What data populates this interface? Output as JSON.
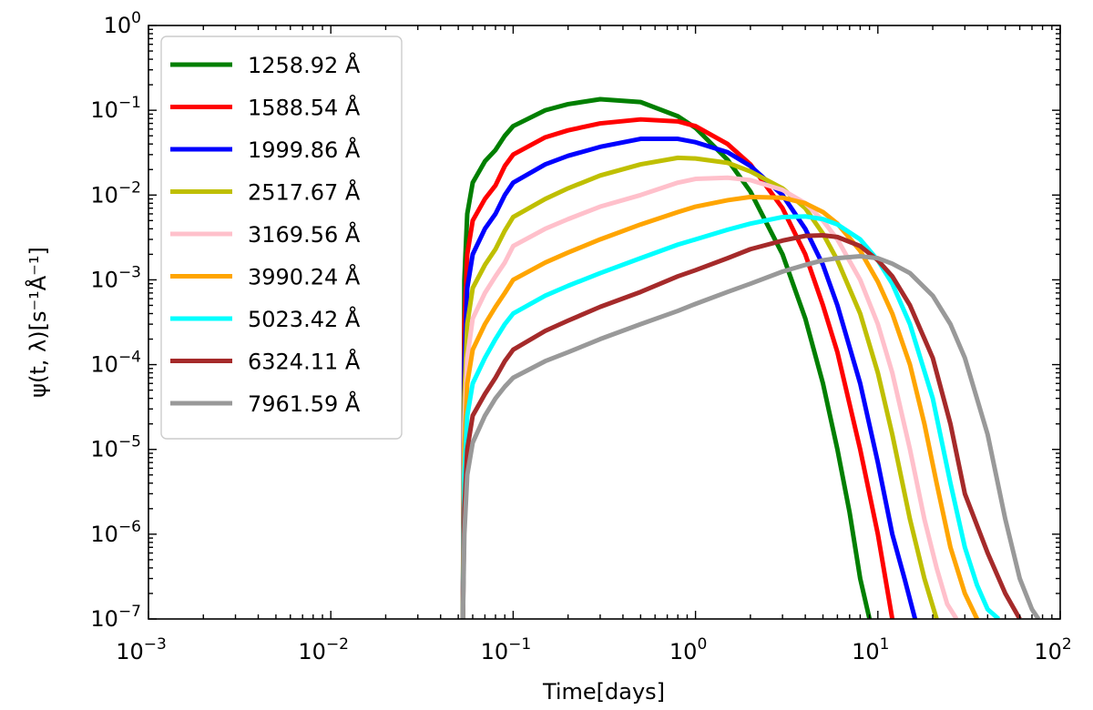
{
  "chart_data": {
    "type": "line",
    "xscale": "log",
    "yscale": "log",
    "xlim": [
      0.001,
      100
    ],
    "ylim": [
      1e-07,
      1
    ],
    "xlabel": "Time[days]",
    "ylabel": "ψ(t, λ)[s⁻¹Å⁻¹]",
    "x_ticks": [
      {
        "value": 0.001,
        "base": "10",
        "exp": "−3"
      },
      {
        "value": 0.01,
        "base": "10",
        "exp": "−2"
      },
      {
        "value": 0.1,
        "base": "10",
        "exp": "−1"
      },
      {
        "value": 1,
        "base": "10",
        "exp": "0"
      },
      {
        "value": 10,
        "base": "10",
        "exp": "1"
      },
      {
        "value": 100,
        "base": "10",
        "exp": "2"
      }
    ],
    "y_ticks": [
      {
        "value": 1e-07,
        "base": "10",
        "exp": "−7"
      },
      {
        "value": 1e-06,
        "base": "10",
        "exp": "−6"
      },
      {
        "value": 1e-05,
        "base": "10",
        "exp": "−5"
      },
      {
        "value": 0.0001,
        "base": "10",
        "exp": "−4"
      },
      {
        "value": 0.001,
        "base": "10",
        "exp": "−3"
      },
      {
        "value": 0.01,
        "base": "10",
        "exp": "−2"
      },
      {
        "value": 0.1,
        "base": "10",
        "exp": "−1"
      },
      {
        "value": 1,
        "base": "10",
        "exp": "0"
      }
    ],
    "legend_position": "top-left",
    "series": [
      {
        "name": "1258.92 Å",
        "color": "#007F00",
        "x": [
          0.053,
          0.054,
          0.056,
          0.06,
          0.07,
          0.08,
          0.09,
          0.1,
          0.15,
          0.2,
          0.3,
          0.5,
          0.8,
          1.0,
          1.5,
          2.0,
          3.0,
          4.0,
          5.0,
          6.0,
          7.0,
          8.0,
          9.0
        ],
        "y": [
          1e-07,
          0.001,
          0.006,
          0.014,
          0.025,
          0.034,
          0.05,
          0.065,
          0.1,
          0.118,
          0.135,
          0.125,
          0.085,
          0.062,
          0.026,
          0.011,
          0.002,
          0.00035,
          6e-05,
          1e-05,
          1.8e-06,
          3e-07,
          1e-07
        ]
      },
      {
        "name": "1588.54 Å",
        "color": "#FF0000",
        "x": [
          0.053,
          0.054,
          0.056,
          0.06,
          0.07,
          0.08,
          0.09,
          0.1,
          0.15,
          0.2,
          0.3,
          0.5,
          0.8,
          1.0,
          1.5,
          2.0,
          3.0,
          4.0,
          5.0,
          6.0,
          8.0,
          10.0,
          11.0,
          12.0
        ],
        "y": [
          1e-07,
          0.0003,
          0.002,
          0.005,
          0.009,
          0.013,
          0.022,
          0.03,
          0.048,
          0.058,
          0.07,
          0.078,
          0.074,
          0.065,
          0.04,
          0.023,
          0.007,
          0.002,
          0.0005,
          0.00014,
          1e-05,
          1e-06,
          3e-07,
          1e-07
        ]
      },
      {
        "name": "1999.86 Å",
        "color": "#0000FF",
        "x": [
          0.053,
          0.054,
          0.056,
          0.06,
          0.07,
          0.08,
          0.09,
          0.1,
          0.15,
          0.2,
          0.3,
          0.5,
          0.8,
          1.0,
          1.5,
          2.0,
          3.0,
          4.0,
          5.0,
          6.0,
          8.0,
          10.0,
          12.0,
          14.0,
          16.0
        ],
        "y": [
          1e-07,
          0.0001,
          0.0008,
          0.002,
          0.004,
          0.006,
          0.01,
          0.014,
          0.023,
          0.029,
          0.037,
          0.046,
          0.046,
          0.042,
          0.032,
          0.022,
          0.01,
          0.004,
          0.0015,
          0.0005,
          6e-05,
          7e-06,
          1e-06,
          3e-07,
          1e-07
        ]
      },
      {
        "name": "2517.67 Å",
        "color": "#BFBF00",
        "x": [
          0.053,
          0.054,
          0.056,
          0.06,
          0.07,
          0.08,
          0.09,
          0.1,
          0.15,
          0.2,
          0.3,
          0.5,
          0.8,
          1.0,
          1.5,
          2.0,
          3.0,
          4.0,
          5.0,
          6.0,
          8.0,
          10.0,
          12.0,
          15.0,
          18.0,
          21.0
        ],
        "y": [
          1e-07,
          4e-05,
          0.0003,
          0.0008,
          0.0015,
          0.0023,
          0.0038,
          0.0055,
          0.009,
          0.012,
          0.017,
          0.023,
          0.0275,
          0.027,
          0.024,
          0.019,
          0.012,
          0.007,
          0.0035,
          0.0017,
          0.0004,
          8e-05,
          1.5e-05,
          1.5e-06,
          3e-07,
          1e-07
        ]
      },
      {
        "name": "3169.56 Å",
        "color": "#FFC0CB",
        "x": [
          0.053,
          0.054,
          0.056,
          0.06,
          0.07,
          0.08,
          0.09,
          0.1,
          0.15,
          0.2,
          0.3,
          0.5,
          0.8,
          1.0,
          1.5,
          2.0,
          3.0,
          4.0,
          5.0,
          6.0,
          8.0,
          10.0,
          12.0,
          15.0,
          18.0,
          21.0,
          24.0,
          27.0
        ],
        "y": [
          1e-07,
          2e-05,
          0.00012,
          0.00035,
          0.0007,
          0.0011,
          0.0016,
          0.0025,
          0.004,
          0.0052,
          0.0073,
          0.01,
          0.014,
          0.0155,
          0.016,
          0.015,
          0.0115,
          0.008,
          0.005,
          0.003,
          0.001,
          0.0003,
          8e-05,
          1e-05,
          1.5e-06,
          4e-07,
          1.5e-07,
          1e-07
        ]
      },
      {
        "name": "3990.24 Å",
        "color": "#FFA500",
        "x": [
          0.053,
          0.054,
          0.056,
          0.06,
          0.07,
          0.08,
          0.09,
          0.1,
          0.15,
          0.2,
          0.3,
          0.5,
          0.8,
          1.0,
          1.5,
          2.0,
          3.0,
          4.0,
          5.0,
          6.0,
          8.0,
          10.0,
          12.0,
          15.0,
          18.0,
          21.0,
          25.0,
          30.0,
          35.0
        ],
        "y": [
          1e-07,
          1e-05,
          6e-05,
          0.00015,
          0.0003,
          0.00048,
          0.0007,
          0.001,
          0.0016,
          0.0021,
          0.003,
          0.0045,
          0.0063,
          0.0073,
          0.0087,
          0.0095,
          0.0093,
          0.008,
          0.0063,
          0.0046,
          0.0022,
          0.00095,
          0.0004,
          0.0001,
          2e-05,
          4e-06,
          7e-07,
          2e-07,
          1e-07
        ]
      },
      {
        "name": "5023.42 Å",
        "color": "#00FFFF",
        "x": [
          0.053,
          0.054,
          0.056,
          0.06,
          0.07,
          0.08,
          0.09,
          0.1,
          0.15,
          0.2,
          0.3,
          0.5,
          0.8,
          1.0,
          1.5,
          2.0,
          3.0,
          4.0,
          5.0,
          6.0,
          8.0,
          10.0,
          12.0,
          15.0,
          20.0,
          25.0,
          30.0,
          35.0,
          40.0,
          46.0
        ],
        "y": [
          1e-07,
          5e-06,
          2.5e-05,
          6e-05,
          0.00012,
          0.0002,
          0.0003,
          0.0004,
          0.00065,
          0.00085,
          0.0012,
          0.0018,
          0.0026,
          0.003,
          0.0039,
          0.0046,
          0.0055,
          0.0056,
          0.0052,
          0.0045,
          0.003,
          0.0017,
          0.0009,
          0.0003,
          4e-05,
          4e-06,
          7e-07,
          2.5e-07,
          1.3e-07,
          1e-07
        ]
      },
      {
        "name": "6324.11 Å",
        "color": "#A52A2A",
        "x": [
          0.053,
          0.054,
          0.056,
          0.06,
          0.07,
          0.08,
          0.09,
          0.1,
          0.15,
          0.2,
          0.3,
          0.5,
          0.8,
          1.0,
          1.5,
          2.0,
          3.0,
          4.0,
          5.0,
          6.0,
          8.0,
          10.0,
          12.0,
          15.0,
          20.0,
          25.0,
          30.0,
          40.0,
          50.0,
          60.0
        ],
        "y": [
          1e-07,
          2e-06,
          1e-05,
          2.5e-05,
          4.5e-05,
          7e-05,
          0.00011,
          0.00015,
          0.00025,
          0.00033,
          0.00048,
          0.00072,
          0.0011,
          0.0013,
          0.0018,
          0.0023,
          0.0029,
          0.0033,
          0.00335,
          0.0032,
          0.0025,
          0.0017,
          0.0011,
          0.0005,
          0.00012,
          2e-05,
          3e-06,
          6e-07,
          2e-07,
          1e-07
        ]
      },
      {
        "name": "7961.59 Å",
        "color": "#999999",
        "x": [
          0.053,
          0.054,
          0.056,
          0.06,
          0.07,
          0.08,
          0.09,
          0.1,
          0.15,
          0.2,
          0.3,
          0.5,
          0.8,
          1.0,
          1.5,
          2.0,
          3.0,
          4.0,
          5.0,
          6.0,
          8.0,
          10.0,
          12.0,
          15.0,
          20.0,
          25.0,
          30.0,
          40.0,
          50.0,
          60.0,
          70.0,
          76.0
        ],
        "y": [
          1e-07,
          1e-06,
          5e-06,
          1.2e-05,
          2.5e-05,
          4e-05,
          5.5e-05,
          7e-05,
          0.00011,
          0.00014,
          0.0002,
          0.0003,
          0.00043,
          0.00052,
          0.00072,
          0.0009,
          0.00125,
          0.0015,
          0.0017,
          0.0018,
          0.0019,
          0.0018,
          0.00155,
          0.0012,
          0.00065,
          0.0003,
          0.00012,
          1.5e-05,
          1.5e-06,
          3e-07,
          1.3e-07,
          1e-07
        ]
      }
    ]
  }
}
